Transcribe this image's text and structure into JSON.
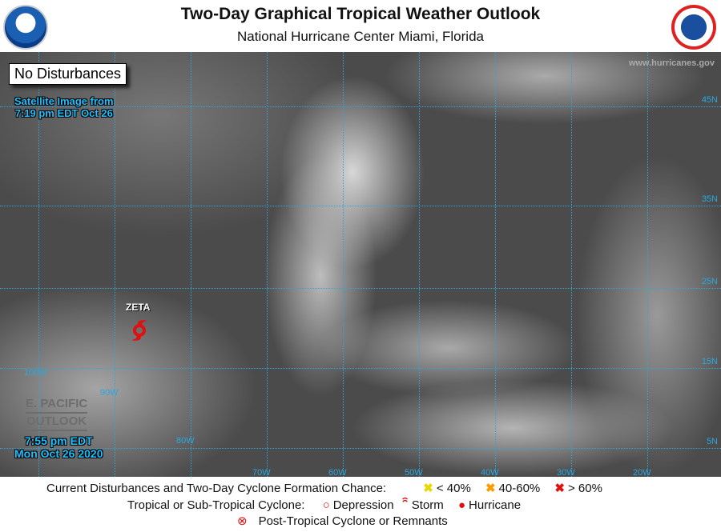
{
  "header": {
    "title": "Two-Day Graphical Tropical Weather Outlook",
    "subtitle": "National Hurricane Center  Miami, Florida",
    "logos": [
      "NOAA",
      "NATIONAL WEATHER SERVICE"
    ]
  },
  "map": {
    "status": "No Disturbances",
    "satellite_caption": [
      "Satellite Image from",
      "7:19 pm EDT Oct 26"
    ],
    "issued": [
      "7:55 pm EDT",
      "Mon Oct 26 2020"
    ],
    "epac_link": [
      "E. PACIFIC",
      "OUTLOOK"
    ],
    "website": "www.hurricanes.gov",
    "storm": {
      "name": "ZETA",
      "type": "hurricane",
      "color": "#e01010"
    },
    "lon_labels": [
      "100W",
      "90W",
      "80W",
      "70W",
      "60W",
      "50W",
      "40W",
      "30W",
      "20W"
    ],
    "lat_labels": [
      "45N",
      "35N",
      "25N",
      "15N",
      "5N"
    ],
    "grid_color": "#2aa7e0"
  },
  "legend": {
    "row1_label": "Current Disturbances and Two-Day Cyclone Formation Chance:",
    "chances": [
      {
        "label": "< 40%",
        "color": "#ffee00"
      },
      {
        "label": "40-60%",
        "color": "#ff9900"
      },
      {
        "label": "> 60%",
        "color": "#e01010"
      }
    ],
    "row2_label": "Tropical or Sub-Tropical Cyclone:",
    "cyclones": [
      {
        "label": "Depression",
        "icon": "open-circle-icon"
      },
      {
        "label": "Storm",
        "icon": "storm-icon"
      },
      {
        "label": "Hurricane",
        "icon": "hurricane-icon"
      }
    ],
    "row3_label": "Post-Tropical Cyclone or Remnants"
  }
}
